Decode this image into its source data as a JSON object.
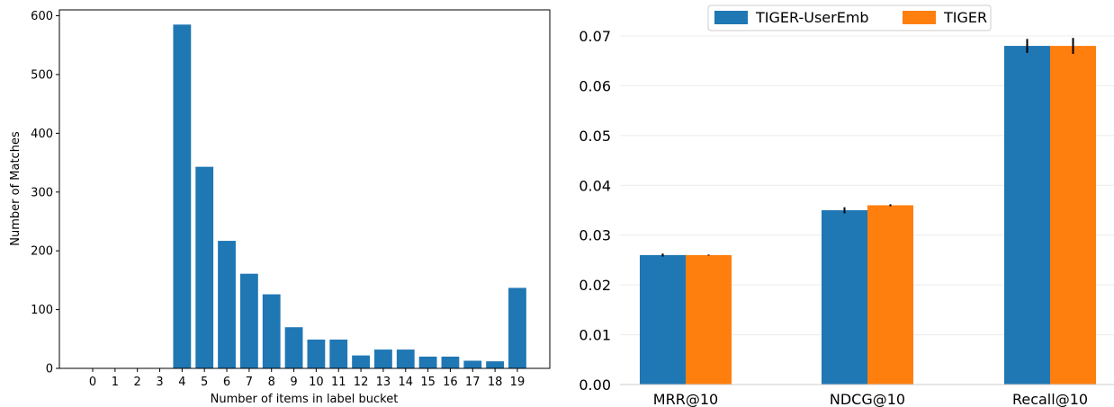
{
  "chart_data": [
    {
      "type": "bar",
      "xlabel": "Number of items in label bucket",
      "ylabel": "Number of Matches",
      "categories": [
        "0",
        "1",
        "2",
        "3",
        "4",
        "5",
        "6",
        "7",
        "8",
        "9",
        "10",
        "11",
        "12",
        "13",
        "14",
        "15",
        "16",
        "17",
        "18",
        "19"
      ],
      "values": [
        0,
        0,
        0,
        0,
        585,
        343,
        217,
        161,
        126,
        70,
        49,
        49,
        22,
        32,
        32,
        20,
        20,
        13,
        12,
        137
      ],
      "ylim": [
        0,
        610
      ],
      "yticks": [
        "0",
        "100",
        "200",
        "300",
        "400",
        "500",
        "600"
      ],
      "color": "#1f77b4",
      "grid": false
    },
    {
      "type": "bar",
      "categories": [
        "MRR@10",
        "NDCG@10",
        "Recall@10"
      ],
      "series": [
        {
          "name": "TIGER-UserEmb",
          "values": [
            0.026,
            0.035,
            0.068
          ],
          "error": [
            0.0003,
            0.0006,
            0.0014
          ],
          "color": "#1f77b4"
        },
        {
          "name": "TIGER",
          "values": [
            0.026,
            0.036,
            0.068
          ],
          "error": [
            0.0001,
            0.0002,
            0.0016
          ],
          "color": "#ff7f0e"
        }
      ],
      "ylim": [
        0,
        0.07
      ],
      "yticks": [
        "0.00",
        "0.01",
        "0.02",
        "0.03",
        "0.04",
        "0.05",
        "0.06",
        "0.07"
      ],
      "legend_position": "top-center",
      "grid": true
    }
  ]
}
